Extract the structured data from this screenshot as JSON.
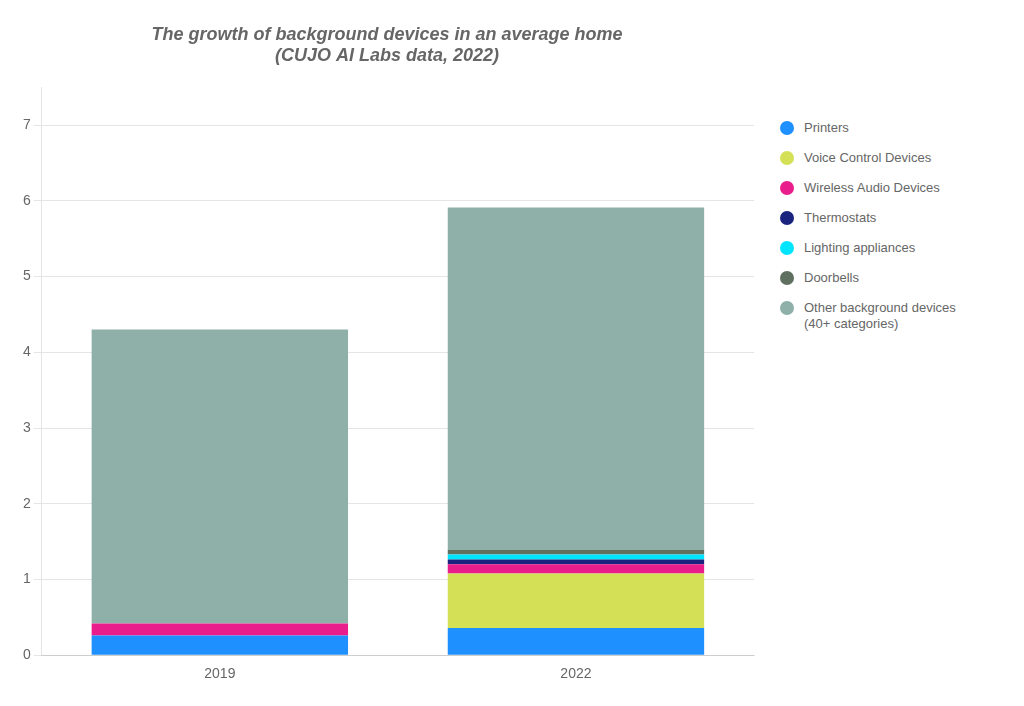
{
  "chart_data": {
    "type": "bar",
    "stacked": true,
    "title": "The growth of background devices in an average home\n(CUJO AI Labs data, 2022)",
    "categories": [
      "2019",
      "2022"
    ],
    "series": [
      {
        "name": "Printers",
        "color": "#1E90FF",
        "values": [
          0.26,
          0.36
        ]
      },
      {
        "name": "Voice Control Devices",
        "color": "#D4E157",
        "values": [
          0.0,
          0.72
        ]
      },
      {
        "name": "Wireless Audio Devices",
        "color": "#E91E8C",
        "values": [
          0.16,
          0.12
        ]
      },
      {
        "name": "Thermostats",
        "color": "#1A237E",
        "values": [
          0.0,
          0.065
        ]
      },
      {
        "name": "Lighting appliances",
        "color": "#00E5FF",
        "values": [
          0.0,
          0.065
        ]
      },
      {
        "name": "Doorbells",
        "color": "#607060",
        "values": [
          0.0,
          0.06
        ]
      },
      {
        "name": "Other background devices\n(40+ categories)",
        "color": "#8FB0A9",
        "values": [
          3.88,
          4.52
        ]
      }
    ],
    "ylim": [
      0,
      7.5
    ],
    "yticks": [
      0,
      1,
      2,
      3,
      4,
      5,
      6,
      7
    ],
    "grid": true,
    "legend": "right"
  }
}
